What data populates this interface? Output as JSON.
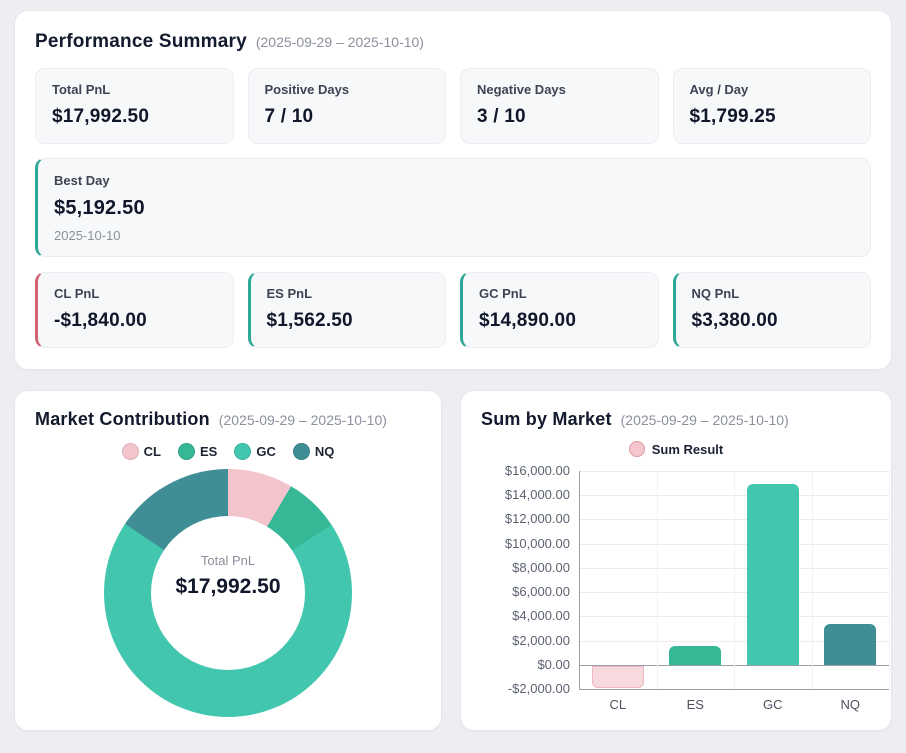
{
  "performance": {
    "title": "Performance Summary",
    "date_range": "(2025-09-29 – 2025-10-10)",
    "stats": [
      {
        "label": "Total PnL",
        "value": "$17,992.50"
      },
      {
        "label": "Positive Days",
        "value": "7 / 10"
      },
      {
        "label": "Negative Days",
        "value": "3 / 10"
      },
      {
        "label": "Avg / Day",
        "value": "$1,799.25"
      }
    ],
    "best_day": {
      "label": "Best Day",
      "value": "$5,192.50",
      "date": "2025-10-10",
      "accent": "#2fa796"
    },
    "market_pnl": [
      {
        "label": "CL PnL",
        "value": "-$1,840.00",
        "accent": "#d26272"
      },
      {
        "label": "ES PnL",
        "value": "$1,562.50",
        "accent": "#2fa796"
      },
      {
        "label": "GC PnL",
        "value": "$14,890.00",
        "accent": "#2fa796"
      },
      {
        "label": "NQ PnL",
        "value": "$3,380.00",
        "accent": "#2fa796"
      }
    ]
  },
  "contribution": {
    "title": "Market Contribution",
    "date_range": "(2025-09-29 – 2025-10-10)",
    "center_label": "Total PnL",
    "center_value": "$17,992.50"
  },
  "sum_by_market": {
    "title": "Sum by Market",
    "date_range": "(2025-09-29 – 2025-10-10)",
    "legend_label": "Sum Result"
  },
  "chart_data": [
    {
      "type": "pie",
      "title": "Market Contribution",
      "labels": [
        "CL",
        "ES",
        "GC",
        "NQ"
      ],
      "values": [
        1840,
        1562.5,
        14890,
        3380
      ],
      "colors": [
        "#f3c4cb",
        "#36b897",
        "#42c7ae",
        "#3f8e96"
      ],
      "center_label": "Total PnL",
      "center_value": "$17,992.50",
      "legend_position": "top",
      "donut": true
    },
    {
      "type": "bar",
      "title": "Sum by Market",
      "series_name": "Sum Result",
      "categories": [
        "CL",
        "ES",
        "GC",
        "NQ"
      ],
      "values": [
        -1840,
        1562.5,
        14890,
        3380
      ],
      "ylim": [
        -2000,
        16000
      ],
      "ytick_step": 2000,
      "ytick_labels": [
        "$16,000.00",
        "$14,000.00",
        "$12,000.00",
        "$10,000.00",
        "$8,000.00",
        "$6,000.00",
        "$4,000.00",
        "$2,000.00",
        "$0.00",
        "-$2,000.00"
      ],
      "bar_colors": [
        "#f8d9de",
        "#36b897",
        "#42c7ae",
        "#3f8e96"
      ],
      "bar_border_colors": [
        "#edb8c1",
        "",
        "",
        ""
      ],
      "grid": true,
      "legend_position": "top"
    }
  ]
}
